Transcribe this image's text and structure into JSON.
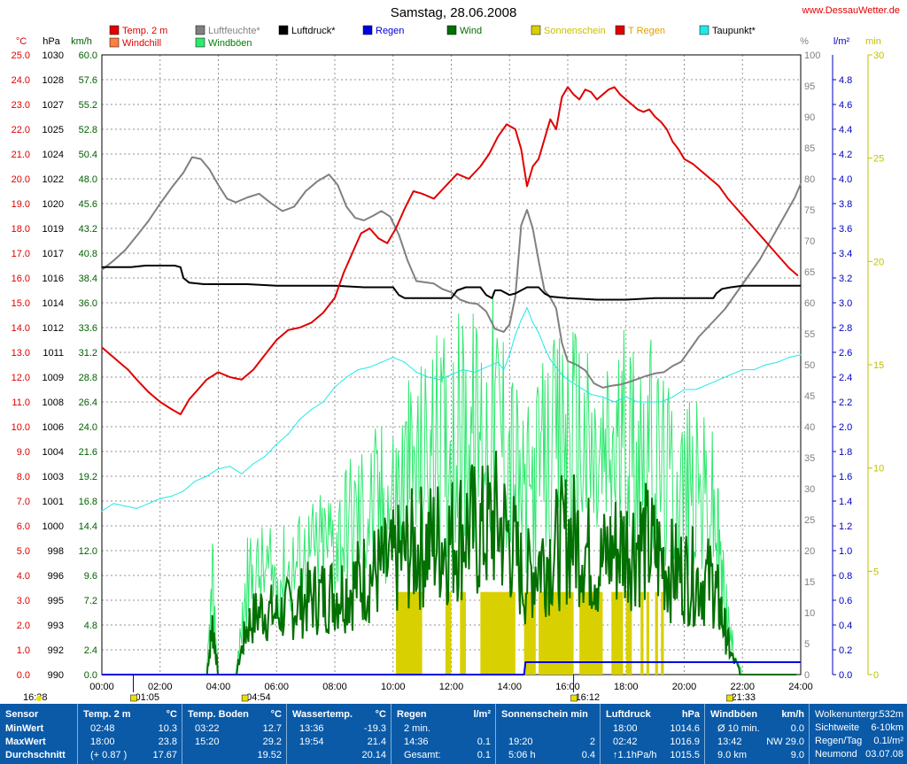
{
  "title": "Samstag, 28.06.2008",
  "site": "www.DessauWetter.de",
  "legend": [
    {
      "label": "Temp. 2 m",
      "color": "#e00000",
      "text_color": "#e00000"
    },
    {
      "label": "Luftfeuchte*",
      "color": "#808080",
      "text_color": "#808080"
    },
    {
      "label": "Luftdruck*",
      "color": "#000000",
      "text_color": "#000000"
    },
    {
      "label": "Regen",
      "color": "#0000e0",
      "text_color": "#0000e0"
    },
    {
      "label": "Wind",
      "color": "#007000",
      "text_color": "#007000"
    },
    {
      "label": "Sonnenschein",
      "color": "#d8d000",
      "text_color": "#c8c000"
    },
    {
      "label": "T Regen",
      "color": "#e00000",
      "text_color": "#e0a000"
    },
    {
      "label": "Taupunkt*",
      "color": "#20e8e8",
      "text_color": "#000000"
    },
    {
      "label": "Windchill",
      "color": "#ff8040",
      "text_color": "#e00000"
    },
    {
      "label": "Windböen",
      "color": "#30e870",
      "text_color": "#008000"
    }
  ],
  "axis_units": {
    "temp": "°C",
    "pressure": "hPa",
    "wind": "km/h",
    "humidity": "%",
    "rain": "l/m²",
    "sun": "min"
  },
  "chart_data": {
    "type": "line",
    "x_label": "",
    "x_range": [
      0,
      24
    ],
    "x_ticks": [
      "00:00",
      "02:00",
      "04:00",
      "06:00",
      "08:00",
      "10:00",
      "12:00",
      "14:00",
      "16:00",
      "18:00",
      "20:00",
      "22:00",
      "24:00"
    ],
    "grid": true,
    "axes": {
      "temp": {
        "range": [
          0,
          25
        ],
        "step": 1
      },
      "pressure": {
        "range": [
          990,
          1030
        ],
        "step": 2
      },
      "wind": {
        "range": [
          0,
          60
        ],
        "step": 2
      },
      "humidity": {
        "range": [
          0,
          100
        ],
        "step": 5
      },
      "rain": {
        "range": [
          0,
          5
        ],
        "step": 0.2
      },
      "sun": {
        "range": [
          0,
          30
        ],
        "step": 5
      }
    },
    "series": [
      {
        "name": "Temp. 2 m",
        "axis": "temp",
        "color": "#e00000",
        "x": [
          0,
          0.3,
          0.6,
          0.9,
          1.2,
          1.6,
          2.0,
          2.4,
          2.7,
          3.0,
          3.3,
          3.6,
          4.0,
          4.4,
          4.8,
          5.2,
          5.6,
          6.0,
          6.4,
          6.8,
          7.2,
          7.6,
          8.0,
          8.3,
          8.6,
          8.9,
          9.2,
          9.5,
          9.8,
          10.1,
          10.4,
          10.7,
          11.0,
          11.4,
          11.8,
          12.2,
          12.6,
          13.0,
          13.3,
          13.6,
          13.9,
          14.2,
          14.4,
          14.6,
          14.8,
          15.0,
          15.2,
          15.4,
          15.6,
          15.8,
          16.0,
          16.2,
          16.4,
          16.6,
          16.8,
          17.0,
          17.2,
          17.4,
          17.6,
          17.8,
          18.0,
          18.2,
          18.4,
          18.6,
          18.8,
          19.0,
          19.2,
          19.4,
          19.6,
          19.8,
          20.0,
          20.3,
          20.6,
          20.9,
          21.2,
          21.5,
          21.8,
          22.1,
          22.4,
          22.7,
          23.0,
          23.3,
          23.6,
          23.9
        ],
        "y": [
          13.2,
          12.9,
          12.6,
          12.3,
          11.9,
          11.4,
          11.0,
          10.7,
          10.5,
          11.1,
          11.5,
          11.9,
          12.2,
          12.0,
          11.9,
          12.3,
          12.9,
          13.5,
          13.9,
          14.0,
          14.2,
          14.6,
          15.2,
          16.2,
          17.0,
          17.8,
          18.0,
          17.6,
          17.4,
          18.0,
          18.8,
          19.5,
          19.4,
          19.2,
          19.7,
          20.2,
          20.0,
          20.5,
          21.0,
          21.7,
          22.2,
          22.0,
          21.2,
          19.7,
          20.5,
          20.8,
          21.6,
          22.4,
          22.0,
          23.3,
          23.7,
          23.4,
          23.2,
          23.6,
          23.5,
          23.2,
          23.4,
          23.6,
          23.7,
          23.4,
          23.2,
          23.0,
          22.8,
          22.7,
          22.8,
          22.5,
          22.3,
          22.0,
          21.5,
          21.2,
          20.8,
          20.6,
          20.3,
          20.0,
          19.7,
          19.2,
          18.8,
          18.4,
          18.0,
          17.6,
          17.2,
          16.8,
          16.4,
          16.1
        ]
      },
      {
        "name": "Luftfeuchte*",
        "axis": "humidity",
        "color": "#808080",
        "x": [
          0,
          0.4,
          0.8,
          1.2,
          1.6,
          2.0,
          2.4,
          2.8,
          3.1,
          3.4,
          3.7,
          4.0,
          4.3,
          4.6,
          5.0,
          5.4,
          5.8,
          6.2,
          6.6,
          7.0,
          7.4,
          7.8,
          8.1,
          8.4,
          8.7,
          9.0,
          9.3,
          9.6,
          9.9,
          10.2,
          10.5,
          10.8,
          11.1,
          11.4,
          11.7,
          12.0,
          12.3,
          12.6,
          12.9,
          13.2,
          13.5,
          13.8,
          14.0,
          14.2,
          14.4,
          14.6,
          14.8,
          15.0,
          15.2,
          15.4,
          15.6,
          15.8,
          16.0,
          16.3,
          16.6,
          16.9,
          17.2,
          17.5,
          17.8,
          18.1,
          18.4,
          18.7,
          19.0,
          19.3,
          19.6,
          19.9,
          20.2,
          20.5,
          20.8,
          21.1,
          21.4,
          21.7,
          22.0,
          22.3,
          22.6,
          22.9,
          23.2,
          23.5,
          23.8,
          24.0
        ],
        "y": [
          65.3,
          66.8,
          68.5,
          70.8,
          73.2,
          76.0,
          78.6,
          81.0,
          83.5,
          83.2,
          81.5,
          79.0,
          76.8,
          76.2,
          77.0,
          77.6,
          76.1,
          74.8,
          75.5,
          78.0,
          79.6,
          80.7,
          79.0,
          75.5,
          73.7,
          73.3,
          74.0,
          74.8,
          73.9,
          71.0,
          66.8,
          63.5,
          63.3,
          63.1,
          62.2,
          61.7,
          60.5,
          60.0,
          59.8,
          58.6,
          55.8,
          55.3,
          56.5,
          61.0,
          72.5,
          75.0,
          72.0,
          66.8,
          62.0,
          60.8,
          59.1,
          53.5,
          50.6,
          50.0,
          49.1,
          47.0,
          46.3,
          46.6,
          46.8,
          47.2,
          47.7,
          48.2,
          48.6,
          48.8,
          49.8,
          50.5,
          52.5,
          54.5,
          56.0,
          57.5,
          59.0,
          61.0,
          63.0,
          65.0,
          67.0,
          69.5,
          72.0,
          74.5,
          77.0,
          79.2
        ]
      },
      {
        "name": "Luftdruck*",
        "axis": "pressure",
        "color": "#000000",
        "x": [
          0,
          0.5,
          1.0,
          1.5,
          2.0,
          2.5,
          2.7,
          2.8,
          3.0,
          3.5,
          4.0,
          5.0,
          6.0,
          7.0,
          8.0,
          9.0,
          10.0,
          10.2,
          10.4,
          11.0,
          12.0,
          12.2,
          12.5,
          13.0,
          13.2,
          13.4,
          13.5,
          13.7,
          14.0,
          14.2,
          14.4,
          14.6,
          15.0,
          15.2,
          15.4,
          16.0,
          17.0,
          18.0,
          19.0,
          20.0,
          21.0,
          21.1,
          21.3,
          21.6,
          22.0,
          23.0,
          24.0
        ],
        "y": [
          1016.3,
          1016.3,
          1016.3,
          1016.4,
          1016.4,
          1016.4,
          1016.3,
          1015.6,
          1015.3,
          1015.2,
          1015.2,
          1015.2,
          1015.1,
          1015.1,
          1015.1,
          1015.0,
          1015.0,
          1014.5,
          1014.3,
          1014.3,
          1014.3,
          1014.8,
          1015.0,
          1015.0,
          1014.5,
          1014.3,
          1014.8,
          1014.8,
          1014.5,
          1014.6,
          1014.8,
          1015.0,
          1015.0,
          1014.6,
          1014.4,
          1014.3,
          1014.2,
          1014.2,
          1014.3,
          1014.3,
          1014.3,
          1014.6,
          1014.9,
          1015.0,
          1015.1,
          1015.1,
          1015.1
        ]
      },
      {
        "name": "Taupunkt*",
        "axis": "temp",
        "color": "#20e8e8",
        "x": [
          0,
          0.4,
          0.8,
          1.2,
          1.6,
          2.0,
          2.4,
          2.8,
          3.2,
          3.6,
          4.0,
          4.4,
          4.8,
          5.2,
          5.6,
          6.0,
          6.4,
          6.8,
          7.2,
          7.6,
          8.0,
          8.4,
          8.8,
          9.2,
          9.6,
          10.0,
          10.4,
          10.8,
          11.2,
          11.6,
          12.0,
          12.4,
          12.8,
          13.2,
          13.6,
          13.8,
          14.0,
          14.2,
          14.4,
          14.6,
          14.8,
          15.0,
          15.2,
          15.4,
          15.6,
          15.8,
          16.0,
          16.4,
          16.8,
          17.2,
          17.6,
          18.0,
          18.4,
          18.8,
          19.2,
          19.6,
          20.0,
          20.4,
          20.8,
          21.2,
          21.6,
          22.0,
          22.4,
          22.8,
          23.2,
          23.6,
          24.0
        ],
        "y": [
          6.6,
          6.9,
          6.8,
          6.7,
          6.9,
          7.1,
          7.2,
          7.4,
          7.8,
          8.0,
          8.3,
          8.4,
          8.1,
          8.5,
          8.8,
          9.3,
          9.7,
          10.3,
          10.7,
          11.0,
          11.6,
          12.0,
          12.3,
          12.4,
          12.6,
          12.8,
          12.6,
          12.2,
          12.0,
          11.9,
          12.1,
          12.3,
          12.2,
          12.4,
          12.6,
          12.3,
          12.9,
          13.7,
          14.3,
          14.8,
          14.2,
          13.8,
          13.2,
          12.7,
          12.4,
          12.1,
          11.9,
          11.6,
          11.3,
          11.2,
          11.0,
          11.2,
          11.0,
          11.0,
          11.0,
          11.2,
          11.5,
          11.5,
          11.7,
          11.9,
          12.1,
          12.3,
          12.3,
          12.5,
          12.6,
          12.8,
          12.9
        ]
      },
      {
        "name": "Regen",
        "axis": "rain",
        "color": "#0000e0",
        "x": [
          0,
          14.5,
          14.55,
          24
        ],
        "y": [
          0,
          0,
          0.1,
          0.1
        ]
      },
      {
        "name": "Wind",
        "axis": "wind",
        "color": "#007000",
        "x": [
          0,
          3.6,
          3.8,
          4.0,
          4.6,
          5.0,
          5.5,
          6.0,
          6.5,
          7.0,
          7.5,
          8.0,
          8.5,
          9.0,
          9.5,
          10.0,
          10.5,
          11.0,
          11.5,
          12.0,
          12.5,
          13.0,
          13.5,
          14.0,
          14.5,
          15.0,
          15.5,
          16.0,
          16.5,
          17.0,
          17.5,
          18.0,
          18.5,
          19.0,
          19.5,
          20.0,
          20.5,
          21.0,
          21.3,
          21.6,
          22.0,
          24.0
        ],
        "y": [
          0,
          0,
          5.2,
          0,
          0,
          5.2,
          6.8,
          6.2,
          7.0,
          7.8,
          8.2,
          8.6,
          9.0,
          10.2,
          10.8,
          11.5,
          12.8,
          13.4,
          14.0,
          14.2,
          15.4,
          14.6,
          16.0,
          14.4,
          9.6,
          12.0,
          12.8,
          14.6,
          14.0,
          11.0,
          13.0,
          13.5,
          14.0,
          12.8,
          11.0,
          10.6,
          10.0,
          9.6,
          6.0,
          2.0,
          0,
          0
        ]
      },
      {
        "name": "Windböen",
        "axis": "wind",
        "color": "#30e870",
        "x": [
          0,
          3.6,
          3.8,
          4.0,
          4.6,
          5.0,
          5.5,
          6.0,
          6.5,
          7.0,
          7.5,
          8.0,
          8.5,
          9.0,
          9.5,
          10.0,
          10.5,
          11.0,
          11.5,
          12.0,
          12.5,
          13.0,
          13.5,
          14.0,
          14.5,
          15.0,
          15.5,
          16.0,
          16.5,
          17.0,
          17.5,
          18.0,
          18.5,
          19.0,
          19.5,
          20.0,
          20.5,
          21.0,
          21.3,
          21.6,
          22.0,
          24.0
        ],
        "y": [
          0,
          0,
          9.4,
          0,
          0,
          9.6,
          10.6,
          10.0,
          11.2,
          12.2,
          13.0,
          14.4,
          15.8,
          17.0,
          17.8,
          18.6,
          20.6,
          22.2,
          23.6,
          24.4,
          26.0,
          25.0,
          27.4,
          24.0,
          17.6,
          21.4,
          23.0,
          25.8,
          24.2,
          20.8,
          23.0,
          24.2,
          24.8,
          22.6,
          20.2,
          19.6,
          18.8,
          17.2,
          10.0,
          3.6,
          0,
          0
        ]
      },
      {
        "name": "Sonnenschein",
        "axis": "sun",
        "color": "#d8d000",
        "bars": [
          [
            10.1,
            11.0
          ],
          [
            11.8,
            12.0
          ],
          [
            12.3,
            12.5
          ],
          [
            13.0,
            14.2
          ],
          [
            14.5,
            14.9
          ],
          [
            15.0,
            16.2
          ],
          [
            16.4,
            17.2
          ],
          [
            17.5,
            17.9
          ],
          [
            18.0,
            18.2
          ],
          [
            18.5,
            18.6
          ],
          [
            18.7,
            18.8
          ],
          [
            19.0,
            19.1
          ],
          [
            19.2,
            19.3
          ]
        ],
        "value": 4
      }
    ]
  },
  "markers": [
    {
      "time": "16:38",
      "x": -1
    },
    {
      "time": "01:05",
      "x": 1.08
    },
    {
      "time": "04:54",
      "x": 4.9
    },
    {
      "time": "16:12",
      "x": 16.2
    },
    {
      "time": "21:33",
      "x": 21.55
    }
  ],
  "stats": {
    "sensor": {
      "header": "Sensor",
      "rows": [
        "MinWert",
        "MaxWert",
        "Durchschnitt"
      ]
    },
    "temp": {
      "header": "Temp. 2 m",
      "unit": "°C",
      "rows": [
        [
          "02:48",
          "10.3"
        ],
        [
          "18:00",
          "23.8"
        ],
        [
          "(+ 0.87 )",
          "17.67"
        ]
      ]
    },
    "boden": {
      "header": "Temp. Boden",
      "unit": "°C",
      "rows": [
        [
          "03:22",
          "12.7"
        ],
        [
          "15:20",
          "29.2"
        ],
        [
          "",
          "19.52"
        ]
      ]
    },
    "wasser": {
      "header": "Wassertemp.",
      "unit": "°C",
      "rows": [
        [
          "13:36",
          "-19.3"
        ],
        [
          "19:54",
          "21.4"
        ],
        [
          "",
          "20.14"
        ]
      ]
    },
    "regen": {
      "header": "Regen",
      "unit": "l/m²",
      "rows": [
        [
          "2 min.",
          ""
        ],
        [
          "14:36",
          "0.1"
        ],
        [
          "Gesamt:",
          "0.1"
        ]
      ]
    },
    "sonne": {
      "header": "Sonnenschein min",
      "unit": "",
      "rows": [
        [
          "",
          ""
        ],
        [
          "19:20",
          "2"
        ],
        [
          "5:06 h",
          "0.4"
        ]
      ]
    },
    "druck": {
      "header": "Luftdruck",
      "unit": "hPa",
      "rows": [
        [
          "18:00",
          "1014.6"
        ],
        [
          "02:42",
          "1016.9"
        ],
        [
          "↑1.1hPa/h",
          "1015.5"
        ]
      ]
    },
    "boeen": {
      "header": "Windböen",
      "unit": "km/h",
      "rows": [
        [
          "Ø 10 min.",
          "0.0"
        ],
        [
          "13:42",
          "NW 29.0"
        ],
        [
          "9.0 km",
          "9.0"
        ]
      ]
    },
    "extra": {
      "rows": [
        [
          "Wolkenuntergr.",
          "532m"
        ],
        [
          "Sichtweite",
          "6-10km"
        ],
        [
          "Regen/Tag",
          "0.1l/m²"
        ],
        [
          "Neumond",
          "03.07.08"
        ]
      ]
    }
  }
}
